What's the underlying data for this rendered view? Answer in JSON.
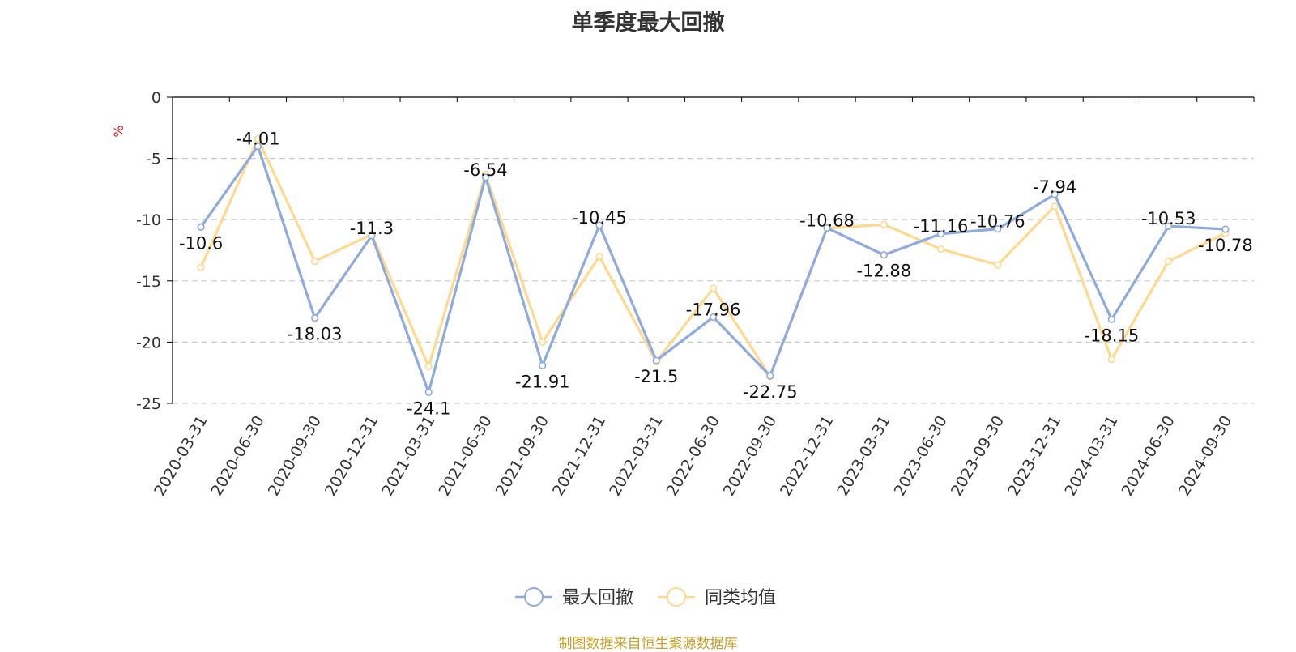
{
  "colors": {
    "drawdown": "#8faadc",
    "peer_avg": "#ffd990",
    "unit_label": "#e02020",
    "source_note": "#c8a02a",
    "axis": "#000000",
    "grid": "#cccccc"
  },
  "chart_data": {
    "type": "line",
    "title": "单季度最大回撤",
    "ylabel": "%",
    "ylim": [
      -25,
      0
    ],
    "yticks": [
      0,
      -5,
      -10,
      -15,
      -20,
      -25
    ],
    "grid": "horizontal dashed",
    "legend_position": "bottom-center",
    "categories": [
      "2020-03-31",
      "2020-06-30",
      "2020-09-30",
      "2020-12-31",
      "2021-03-31",
      "2021-06-30",
      "2021-09-30",
      "2021-12-31",
      "2022-03-31",
      "2022-06-30",
      "2022-09-30",
      "2022-12-31",
      "2023-03-31",
      "2023-06-30",
      "2023-09-30",
      "2023-12-31",
      "2024-03-31",
      "2024-06-30",
      "2024-09-30"
    ],
    "series": [
      {
        "name": "最大回撤",
        "color": "#8faadc",
        "labeled": true,
        "values": [
          -10.6,
          -4.01,
          -18.03,
          -11.3,
          -24.1,
          -6.54,
          -21.91,
          -10.45,
          -21.5,
          -17.96,
          -22.75,
          -10.68,
          -12.88,
          -11.16,
          -10.76,
          -7.94,
          -18.15,
          -10.53,
          -10.78
        ]
      },
      {
        "name": "同类均值",
        "color": "#ffd990",
        "labeled": false,
        "values": [
          -13.9,
          -3.4,
          -13.4,
          -11.2,
          -22.0,
          -6.3,
          -20.0,
          -13.0,
          -21.6,
          -15.6,
          -22.8,
          -10.7,
          -10.4,
          -12.4,
          -13.7,
          -8.9,
          -21.4,
          -13.4,
          -11.1
        ]
      }
    ],
    "source_note": "制图数据来自恒生聚源数据库"
  }
}
